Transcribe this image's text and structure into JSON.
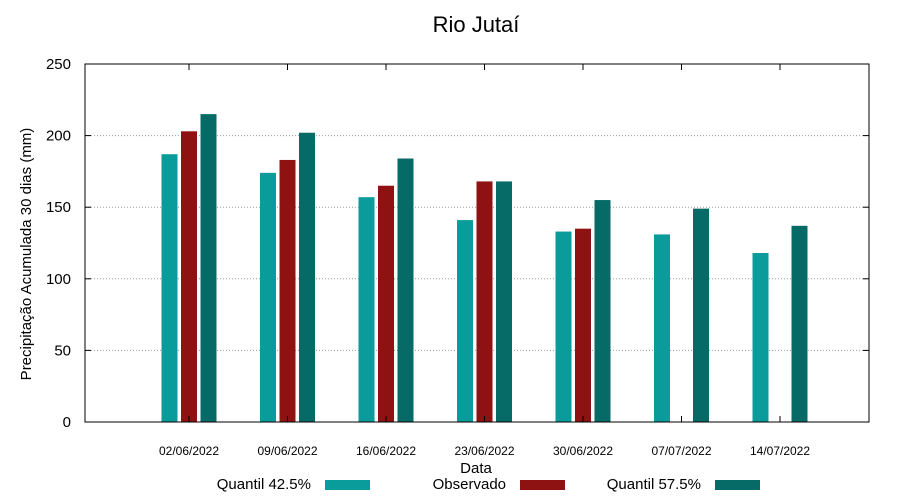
{
  "chart_data": {
    "type": "bar",
    "title": "Rio Jutaí",
    "xlabel": "Data",
    "ylabel": "Precipitação Acumulada 30 dias (mm)",
    "ylim": [
      0,
      250
    ],
    "yticks": [
      0,
      50,
      100,
      150,
      200,
      250
    ],
    "grid": true,
    "legend_position": "bottom",
    "categories": [
      "02/06/2022",
      "09/06/2022",
      "16/06/2022",
      "23/06/2022",
      "30/06/2022",
      "07/07/2022",
      "14/07/2022"
    ],
    "series": [
      {
        "name": "Quantil 42.5%",
        "color": "#0a9b9b",
        "values": [
          187,
          174,
          157,
          141,
          133,
          131,
          118
        ]
      },
      {
        "name": "Observado",
        "color": "#8e1212",
        "values": [
          203,
          183,
          165,
          168,
          135,
          null,
          null
        ]
      },
      {
        "name": "Quantil 57.5%",
        "color": "#066a66",
        "values": [
          215,
          202,
          184,
          168,
          155,
          149,
          137
        ]
      }
    ]
  }
}
